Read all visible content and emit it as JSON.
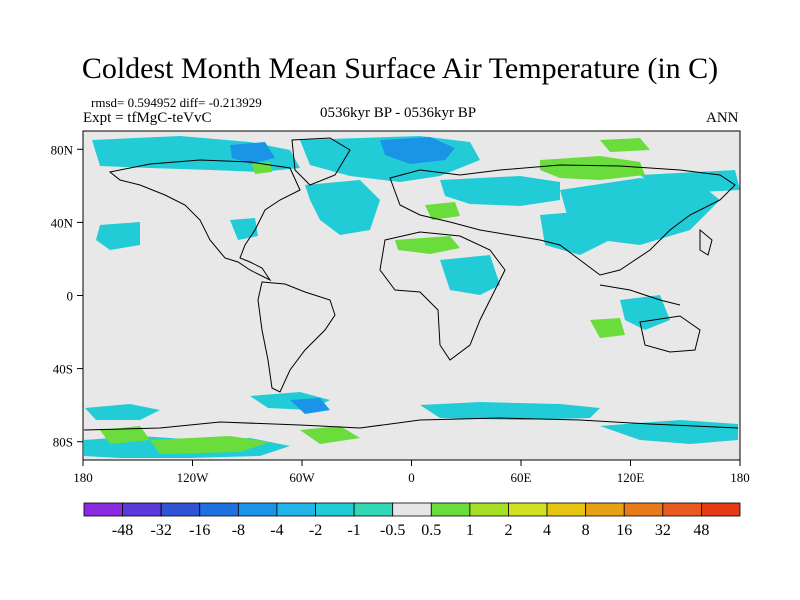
{
  "header": {
    "title": "Coldest Month Mean Surface Air Temperature (in C)",
    "stats": "rmsd= 0.594952  diff= -0.213929",
    "experiment": "Expt = tfMgC-teVvC",
    "period": "0536kyr BP - 0536kyr BP",
    "season": "ANN"
  },
  "map": {
    "projection": "cylindrical equidistant",
    "lon_range": [
      -180,
      180
    ],
    "lat_range": [
      -90,
      90
    ],
    "background_color": "#e8e8e8",
    "x_ticks": [
      {
        "lon": -180,
        "label": "180"
      },
      {
        "lon": -120,
        "label": "120W"
      },
      {
        "lon": -60,
        "label": "60W"
      },
      {
        "lon": 0,
        "label": "0"
      },
      {
        "lon": 60,
        "label": "60E"
      },
      {
        "lon": 120,
        "label": "120E"
      },
      {
        "lon": 180,
        "label": "180"
      }
    ],
    "y_ticks": [
      {
        "lat": 80,
        "label": "80N"
      },
      {
        "lat": 40,
        "label": "40N"
      },
      {
        "lat": 0,
        "label": "0"
      },
      {
        "lat": -40,
        "label": "40S"
      },
      {
        "lat": -80,
        "label": "80S"
      }
    ]
  },
  "colorbar": {
    "colors": [
      "#8a2be2",
      "#5a3ad8",
      "#2f55d6",
      "#1e72e0",
      "#1a94e6",
      "#20b4e8",
      "#22ccd6",
      "#30d8b8",
      "#e6e6e6",
      "#6adc3c",
      "#a6e026",
      "#d2e022",
      "#e8c412",
      "#e8a016",
      "#e87a1a",
      "#e85a1e",
      "#e63a14"
    ],
    "labels": [
      "-48",
      "-32",
      "-16",
      "-8",
      "-4",
      "-2",
      "-1",
      "-0.5",
      "0.5",
      "1",
      "2",
      "4",
      "8",
      "16",
      "32",
      "48"
    ]
  }
}
